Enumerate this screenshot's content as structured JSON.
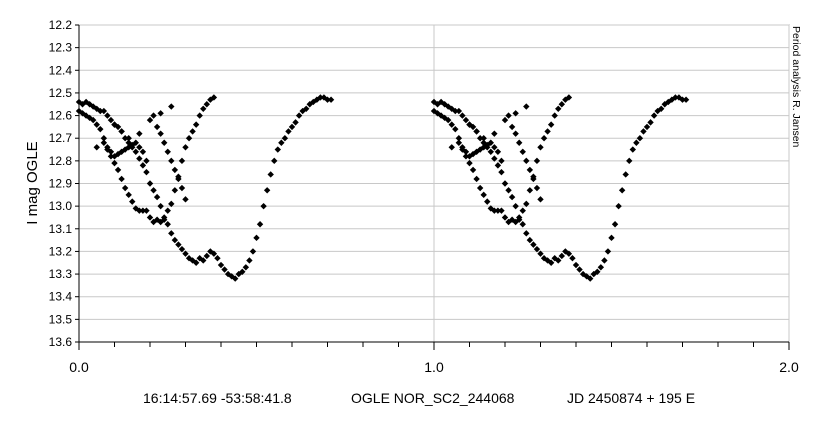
{
  "chart_data": {
    "type": "scatter",
    "title": "",
    "ylabel": "I mag OGLE",
    "xlabel": "",
    "xlim": [
      0.0,
      2.0
    ],
    "ylim": [
      12.2,
      13.6
    ],
    "y_inverted": true,
    "x_major_ticks": [
      "0.0",
      "1.0",
      "2.0"
    ],
    "y_ticks": [
      "12.2",
      "12.3",
      "12.4",
      "12.5",
      "12.6",
      "12.7",
      "12.8",
      "12.9",
      "13.0",
      "13.1",
      "13.2",
      "13.3",
      "13.4",
      "13.5",
      "13.6"
    ],
    "grid": "major x and y",
    "side_note": "Period analysis R. Jansen",
    "captions": [
      "16:14:57.69 -53:58:41.8",
      "OGLE NOR_SC2_244068",
      "JD 2450874 + 195 E"
    ],
    "marker_color": "#000000",
    "series": [
      {
        "points": [
          [
            0.0,
            12.54
          ],
          [
            0.01,
            12.55
          ],
          [
            0.02,
            12.54
          ],
          [
            0.03,
            12.55
          ],
          [
            0.04,
            12.56
          ],
          [
            0.05,
            12.57
          ],
          [
            0.06,
            12.58
          ],
          [
            0.07,
            12.58
          ],
          [
            0.08,
            12.6
          ],
          [
            0.09,
            12.62
          ],
          [
            0.1,
            12.64
          ],
          [
            0.11,
            12.65
          ],
          [
            0.12,
            12.67
          ],
          [
            0.13,
            12.7
          ],
          [
            0.14,
            12.72
          ],
          [
            0.15,
            12.74
          ],
          [
            0.16,
            12.76
          ],
          [
            0.17,
            12.79
          ],
          [
            0.18,
            12.82
          ],
          [
            0.19,
            12.85
          ],
          [
            0.2,
            12.9
          ],
          [
            0.21,
            12.93
          ],
          [
            0.22,
            12.96
          ],
          [
            0.23,
            13.0
          ],
          [
            0.24,
            13.05
          ],
          [
            0.25,
            13.08
          ],
          [
            0.26,
            13.12
          ],
          [
            0.27,
            13.15
          ],
          [
            0.28,
            13.17
          ],
          [
            0.29,
            13.19
          ],
          [
            0.3,
            13.21
          ],
          [
            0.31,
            13.23
          ],
          [
            0.32,
            13.24
          ],
          [
            0.33,
            13.25
          ],
          [
            0.34,
            13.23
          ],
          [
            0.35,
            13.24
          ],
          [
            0.36,
            13.22
          ],
          [
            0.37,
            13.2
          ],
          [
            0.38,
            13.21
          ],
          [
            0.39,
            13.23
          ],
          [
            0.4,
            13.26
          ],
          [
            0.41,
            13.28
          ],
          [
            0.42,
            13.3
          ],
          [
            0.43,
            13.31
          ],
          [
            0.44,
            13.32
          ],
          [
            0.45,
            13.3
          ],
          [
            0.46,
            13.29
          ],
          [
            0.47,
            13.27
          ],
          [
            0.48,
            13.24
          ],
          [
            0.49,
            13.2
          ],
          [
            0.5,
            13.14
          ],
          [
            0.51,
            13.08
          ],
          [
            0.52,
            13.0
          ],
          [
            0.53,
            12.93
          ],
          [
            0.54,
            12.86
          ],
          [
            0.55,
            12.8
          ],
          [
            0.56,
            12.75
          ],
          [
            0.57,
            12.72
          ],
          [
            0.58,
            12.7
          ],
          [
            0.59,
            12.67
          ],
          [
            0.6,
            12.65
          ],
          [
            0.61,
            12.63
          ],
          [
            0.62,
            12.6
          ],
          [
            0.63,
            12.58
          ],
          [
            0.64,
            12.57
          ],
          [
            0.65,
            12.55
          ],
          [
            0.66,
            12.54
          ],
          [
            0.67,
            12.53
          ],
          [
            0.68,
            12.52
          ],
          [
            0.69,
            12.52
          ],
          [
            0.7,
            12.53
          ],
          [
            0.71,
            12.53
          ]
        ]
      },
      {
        "points": [
          [
            0.0,
            12.58
          ],
          [
            0.01,
            12.59
          ],
          [
            0.02,
            12.6
          ],
          [
            0.03,
            12.61
          ],
          [
            0.04,
            12.62
          ],
          [
            0.05,
            12.64
          ],
          [
            0.06,
            12.66
          ],
          [
            0.07,
            12.7
          ],
          [
            0.08,
            12.74
          ],
          [
            0.09,
            12.78
          ],
          [
            0.1,
            12.81
          ],
          [
            0.11,
            12.84
          ],
          [
            0.12,
            12.88
          ],
          [
            0.13,
            12.92
          ],
          [
            0.14,
            12.95
          ],
          [
            0.15,
            12.98
          ],
          [
            0.16,
            13.01
          ],
          [
            0.17,
            13.02
          ],
          [
            0.18,
            13.02
          ],
          [
            0.19,
            13.02
          ],
          [
            0.2,
            13.05
          ],
          [
            0.21,
            13.07
          ],
          [
            0.22,
            13.06
          ],
          [
            0.23,
            13.07
          ],
          [
            0.24,
            13.06
          ],
          [
            0.25,
            13.02
          ],
          [
            0.26,
            12.99
          ],
          [
            0.27,
            12.93
          ],
          [
            0.28,
            12.87
          ],
          [
            0.29,
            12.8
          ],
          [
            0.3,
            12.74
          ],
          [
            0.31,
            12.7
          ],
          [
            0.32,
            12.67
          ],
          [
            0.33,
            12.64
          ],
          [
            0.34,
            12.6
          ],
          [
            0.35,
            12.57
          ],
          [
            0.36,
            12.55
          ],
          [
            0.37,
            12.53
          ],
          [
            0.38,
            12.52
          ]
        ]
      },
      {
        "points": [
          [
            0.05,
            12.74
          ],
          [
            0.07,
            12.72
          ],
          [
            0.08,
            12.75
          ],
          [
            0.09,
            12.76
          ],
          [
            0.1,
            12.78
          ],
          [
            0.11,
            12.77
          ],
          [
            0.12,
            12.76
          ],
          [
            0.13,
            12.75
          ],
          [
            0.14,
            12.74
          ],
          [
            0.15,
            12.73
          ],
          [
            0.16,
            12.72
          ],
          [
            0.17,
            12.74
          ],
          [
            0.18,
            12.76
          ],
          [
            0.19,
            12.8
          ],
          [
            0.21,
            12.6
          ],
          [
            0.22,
            12.65
          ],
          [
            0.23,
            12.68
          ],
          [
            0.24,
            12.72
          ],
          [
            0.25,
            12.76
          ],
          [
            0.26,
            12.8
          ],
          [
            0.27,
            12.84
          ],
          [
            0.28,
            12.88
          ],
          [
            0.29,
            12.92
          ],
          [
            0.3,
            12.97
          ]
        ]
      },
      {
        "points": [
          [
            0.1,
            12.64
          ],
          [
            0.12,
            12.67
          ],
          [
            0.14,
            12.7
          ],
          [
            0.17,
            12.68
          ],
          [
            0.2,
            12.62
          ],
          [
            0.23,
            12.59
          ],
          [
            0.26,
            12.56
          ]
        ]
      }
    ]
  }
}
